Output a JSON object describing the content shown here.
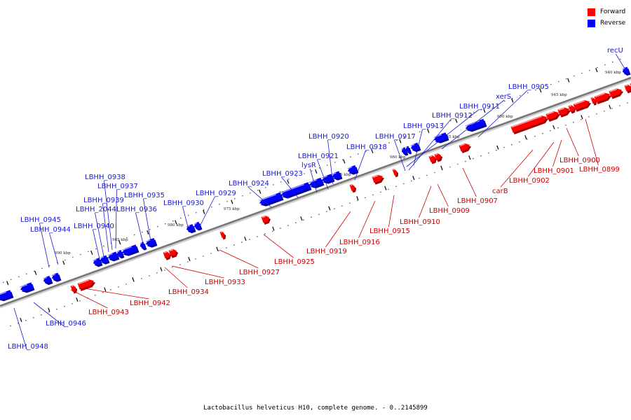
{
  "legend": [
    {
      "label": "Forward",
      "color": "#ff0000"
    },
    {
      "label": "Reverse",
      "color": "#0000ff"
    }
  ],
  "caption": "Lactobacillus helveticus H10, complete genome. - 0..2145899",
  "colors": {
    "forward": "#ff0000",
    "reverse": "#0000ff",
    "forward_label": "#cc0000",
    "reverse_label": "#1a1acc",
    "backbone": "#777777"
  },
  "tick_labels": [
    "940 kbp",
    "945 kbp",
    "950 kbp",
    "955 kbp",
    "960 kbp",
    "965 kbp",
    "970 kbp",
    "975 kbp",
    "980 kbp",
    "985 kbp",
    "990 kbp"
  ],
  "reverse_genes": [
    "recU",
    "LBHH_0905",
    "xerS",
    "LBHH_0911",
    "LBHH_0912",
    "LBHH_0913",
    "LBHH_0917",
    "LBHH_0918",
    "LBHH_0920",
    "LBHH_0921",
    "lysR",
    "LBHH_0923",
    "LBHH_0924",
    "LBHH_0929",
    "LBHH_0930",
    "LBHH_0938",
    "LBHH_0937",
    "LBHH_0939",
    "LBHH_2044",
    "LBHH_0935",
    "LBHH_0936",
    "LBHH_0940",
    "LBHH_0945",
    "LBHH_0944",
    "LBHH_0946",
    "LBHH_0948"
  ],
  "forward_genes": [
    "LBHH_0900",
    "LBHH_0899",
    "LBHH_0901",
    "LBHH_0902",
    "carB",
    "LBHH_0907",
    "LBHH_0909",
    "LBHH_0910",
    "LBHH_0915",
    "LBHH_0916",
    "LBHH_0919",
    "LBHH_0925",
    "LBHH_0927",
    "LBHH_0933",
    "LBHH_0934",
    "LBHH_0942",
    "LBHH_0943"
  ]
}
